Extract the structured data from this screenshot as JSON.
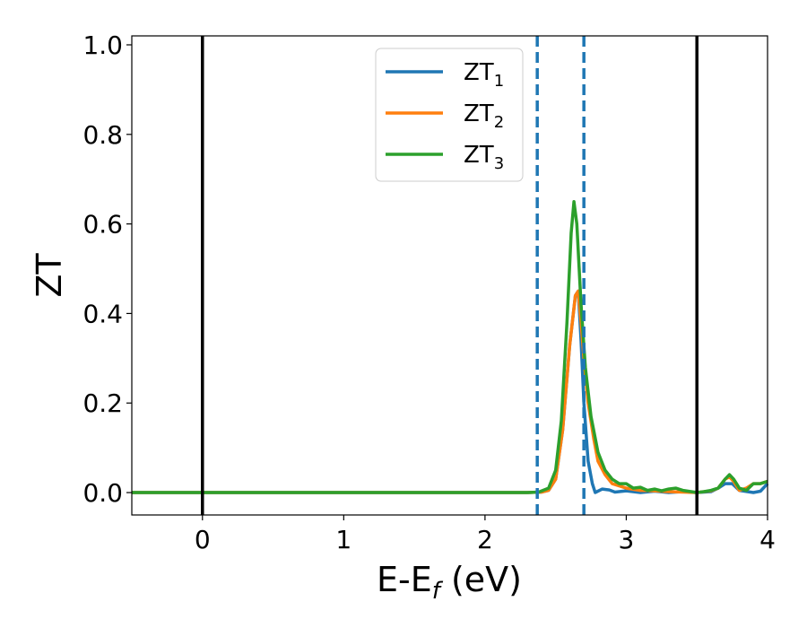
{
  "chart_data": {
    "type": "line",
    "title": "",
    "xlabel": {
      "main": "E-E",
      "sub": "f",
      "suffix": " (eV)"
    },
    "ylabel": "ZT",
    "xlim": [
      -0.5,
      4.0
    ],
    "ylim": [
      -0.05,
      1.02
    ],
    "xticks": [
      0,
      1,
      2,
      3,
      4
    ],
    "xtick_labels": [
      "0",
      "1",
      "2",
      "3",
      "4"
    ],
    "yticks": [
      0.0,
      0.2,
      0.4,
      0.6,
      0.8,
      1.0
    ],
    "ytick_labels": [
      "0.0",
      "0.2",
      "0.4",
      "0.6",
      "0.8",
      "1.0"
    ],
    "grid": false,
    "legend_position": "top-center",
    "vlines_solid": [
      0.0,
      3.5
    ],
    "vlines_dashed": [
      2.37,
      2.7
    ],
    "series": [
      {
        "name": "ZT",
        "sub": "1",
        "color": "#1f77b4",
        "points": [
          [
            -0.5,
            0
          ],
          [
            2.3,
            0
          ],
          [
            2.4,
            0.001
          ],
          [
            2.45,
            0.005
          ],
          [
            2.5,
            0.03
          ],
          [
            2.55,
            0.14
          ],
          [
            2.6,
            0.33
          ],
          [
            2.64,
            0.44
          ],
          [
            2.66,
            0.45
          ],
          [
            2.68,
            0.34
          ],
          [
            2.7,
            0.2
          ],
          [
            2.73,
            0.07
          ],
          [
            2.76,
            0.02
          ],
          [
            2.78,
            0.0
          ],
          [
            2.83,
            0.008
          ],
          [
            2.88,
            0.006
          ],
          [
            2.92,
            0.001
          ],
          [
            3.0,
            0.004
          ],
          [
            3.1,
            0.0
          ],
          [
            3.2,
            0.003
          ],
          [
            3.3,
            0.0
          ],
          [
            3.4,
            0.002
          ],
          [
            3.5,
            0.0
          ],
          [
            3.6,
            0.002
          ],
          [
            3.65,
            0.01
          ],
          [
            3.7,
            0.02
          ],
          [
            3.75,
            0.02
          ],
          [
            3.8,
            0.005
          ],
          [
            3.9,
            0.0
          ],
          [
            3.95,
            0.003
          ],
          [
            4.0,
            0.02
          ]
        ]
      },
      {
        "name": "ZT",
        "sub": "2",
        "color": "#ff7f0e",
        "points": [
          [
            -0.5,
            0
          ],
          [
            2.3,
            0
          ],
          [
            2.4,
            0.001
          ],
          [
            2.45,
            0.005
          ],
          [
            2.5,
            0.03
          ],
          [
            2.55,
            0.14
          ],
          [
            2.6,
            0.33
          ],
          [
            2.64,
            0.44
          ],
          [
            2.66,
            0.45
          ],
          [
            2.68,
            0.38
          ],
          [
            2.7,
            0.3
          ],
          [
            2.73,
            0.2
          ],
          [
            2.77,
            0.12
          ],
          [
            2.8,
            0.07
          ],
          [
            2.85,
            0.04
          ],
          [
            2.9,
            0.02
          ],
          [
            3.0,
            0.01
          ],
          [
            3.1,
            0.005
          ],
          [
            3.2,
            0.004
          ],
          [
            3.3,
            0.002
          ],
          [
            3.4,
            0.001
          ],
          [
            3.5,
            0.0
          ],
          [
            3.6,
            0.004
          ],
          [
            3.65,
            0.01
          ],
          [
            3.7,
            0.03
          ],
          [
            3.73,
            0.035
          ],
          [
            3.76,
            0.025
          ],
          [
            3.8,
            0.005
          ],
          [
            3.85,
            0.01
          ],
          [
            3.9,
            0.02
          ],
          [
            3.95,
            0.02
          ],
          [
            4.0,
            0.025
          ]
        ]
      },
      {
        "name": "ZT",
        "sub": "3",
        "color": "#2ca02c",
        "points": [
          [
            -0.5,
            0
          ],
          [
            2.3,
            0
          ],
          [
            2.38,
            0.001
          ],
          [
            2.45,
            0.01
          ],
          [
            2.5,
            0.05
          ],
          [
            2.54,
            0.16
          ],
          [
            2.58,
            0.38
          ],
          [
            2.61,
            0.58
          ],
          [
            2.63,
            0.65
          ],
          [
            2.65,
            0.6
          ],
          [
            2.68,
            0.42
          ],
          [
            2.71,
            0.28
          ],
          [
            2.75,
            0.17
          ],
          [
            2.8,
            0.09
          ],
          [
            2.85,
            0.05
          ],
          [
            2.9,
            0.03
          ],
          [
            2.95,
            0.02
          ],
          [
            3.0,
            0.02
          ],
          [
            3.05,
            0.01
          ],
          [
            3.1,
            0.012
          ],
          [
            3.15,
            0.005
          ],
          [
            3.2,
            0.008
          ],
          [
            3.25,
            0.004
          ],
          [
            3.3,
            0.008
          ],
          [
            3.35,
            0.01
          ],
          [
            3.4,
            0.005
          ],
          [
            3.5,
            0.0
          ],
          [
            3.55,
            0.002
          ],
          [
            3.6,
            0.005
          ],
          [
            3.65,
            0.01
          ],
          [
            3.7,
            0.03
          ],
          [
            3.73,
            0.04
          ],
          [
            3.76,
            0.03
          ],
          [
            3.8,
            0.01
          ],
          [
            3.85,
            0.005
          ],
          [
            3.9,
            0.02
          ],
          [
            3.95,
            0.02
          ],
          [
            4.0,
            0.025
          ]
        ]
      }
    ]
  }
}
